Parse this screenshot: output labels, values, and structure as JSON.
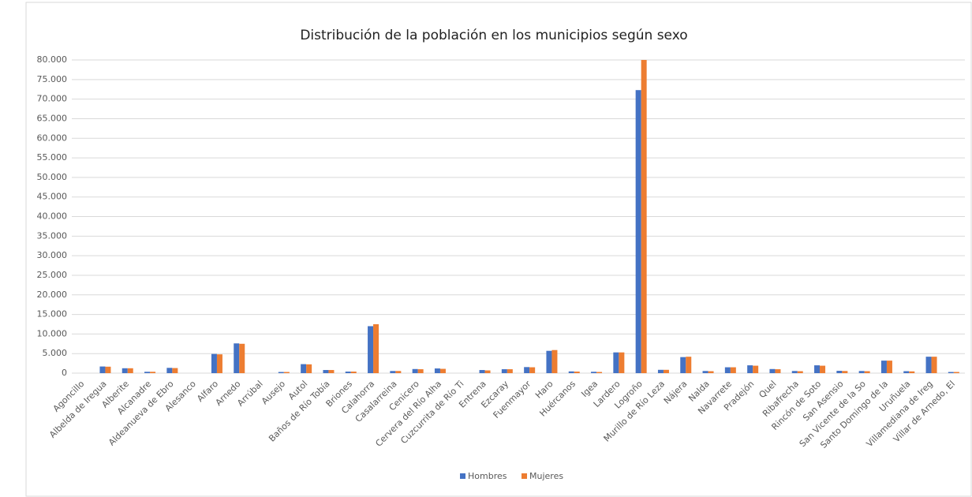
{
  "chart_data": {
    "type": "bar",
    "title": "Distribución de la población en los municipios según sexo",
    "categories": [
      "Agoncillo",
      "Albelda de Iregua",
      "Alberite",
      "Alcanadre",
      "Aldeanueva de Ebro",
      "Alesanco",
      "Alfaro",
      "Arnedo",
      "Arrúbal",
      "Ausejo",
      "Autol",
      "Baños de Río Tobía",
      "Briones",
      "Calahorra",
      "Casalarreina",
      "Cenicero",
      "Cervera del Río Alha",
      "Cuzcurrita de Río Ti",
      "Entrena",
      "Ezcaray",
      "Fuenmayor",
      "Haro",
      "Huércanos",
      "Igea",
      "Lardero",
      "Logroño",
      "Murillo de Río Leza",
      "Nájera",
      "Nalda",
      "Navarrete",
      "Pradejón",
      "Quel",
      "Ribafrecha",
      "Rincón de Soto",
      "San Asensio",
      "San Vicente de la So",
      "Santo Domingo de la",
      "Uruñuela",
      "Villamediana de Ireg",
      "Villar de Arnedo, El"
    ],
    "series": [
      {
        "name": "Hombres",
        "color": "#4472c4",
        "values": [
          0,
          1700,
          1250,
          350,
          1350,
          0,
          4900,
          7600,
          0,
          300,
          2300,
          800,
          400,
          12000,
          550,
          1050,
          1200,
          0,
          800,
          1000,
          1550,
          5700,
          450,
          350,
          5300,
          72300,
          850,
          4100,
          550,
          1500,
          2000,
          1050,
          550,
          2000,
          600,
          550,
          3200,
          500,
          4200,
          300
        ]
      },
      {
        "name": "Mujeres",
        "color": "#ed7d31",
        "values": [
          0,
          1650,
          1250,
          350,
          1300,
          0,
          4800,
          7500,
          0,
          300,
          2250,
          800,
          400,
          12500,
          550,
          1000,
          1100,
          0,
          700,
          1000,
          1500,
          5900,
          400,
          300,
          5300,
          80000,
          850,
          4200,
          500,
          1500,
          1900,
          1000,
          500,
          1900,
          550,
          500,
          3200,
          450,
          4200,
          300
        ]
      }
    ],
    "ylim": [
      0,
      80000
    ],
    "yticks": [
      0,
      {
        "value": 5000,
        "label": "5.000"
      },
      {
        "value": 10000,
        "label": "10.000"
      },
      {
        "value": 15000,
        "label": "15.000"
      },
      {
        "value": 20000,
        "label": "20.000"
      },
      {
        "value": 25000,
        "label": "25.000"
      },
      {
        "value": 30000,
        "label": "30.000"
      },
      {
        "value": 35000,
        "label": "35.000"
      },
      {
        "value": 40000,
        "label": "40.000"
      },
      {
        "value": 45000,
        "label": "45.000"
      },
      {
        "value": 50000,
        "label": "50.000"
      },
      {
        "value": 55000,
        "label": "55.000"
      },
      {
        "value": 60000,
        "label": "60.000"
      },
      {
        "value": 65000,
        "label": "65.000"
      },
      {
        "value": 70000,
        "label": "70.000"
      },
      {
        "value": 75000,
        "label": "75.000"
      },
      {
        "value": 80000,
        "label": "80.000"
      }
    ],
    "grid": true,
    "legend": "bottom"
  }
}
